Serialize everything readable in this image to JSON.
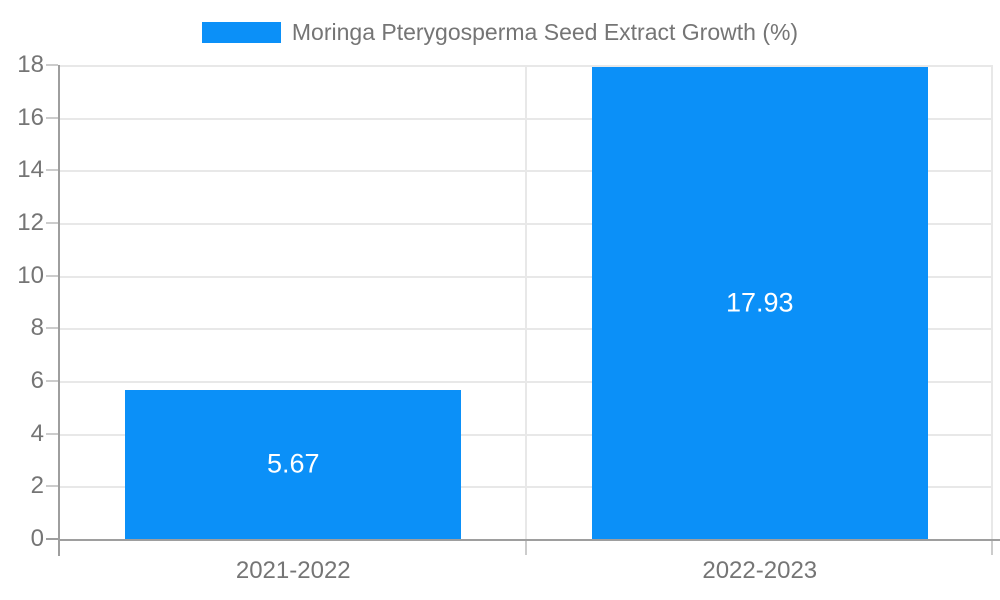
{
  "chart_data": {
    "type": "bar",
    "title": "Moringa Pterygosperma Seed Extract Growth (%)",
    "categories": [
      "2021-2022",
      "2022-2023"
    ],
    "values": [
      5.67,
      17.93
    ],
    "value_labels": [
      "5.67",
      "17.93"
    ],
    "ylim": [
      0,
      18
    ],
    "ytick_step": 2,
    "ytick_labels": [
      "0",
      "2",
      "4",
      "6",
      "8",
      "10",
      "12",
      "14",
      "16",
      "18"
    ],
    "legend": {
      "position": "top",
      "swatch": "blue-rect"
    },
    "grid": true,
    "layout": {
      "bar_width_fraction": 0.72
    },
    "colors": {
      "bar": "#0b90f8",
      "axis": "#9e9e9e",
      "gridline": "#e8e8e8",
      "tick": "#cccccc",
      "text": "#757575",
      "value_label": "#ffffff",
      "background": "#ffffff"
    }
  }
}
